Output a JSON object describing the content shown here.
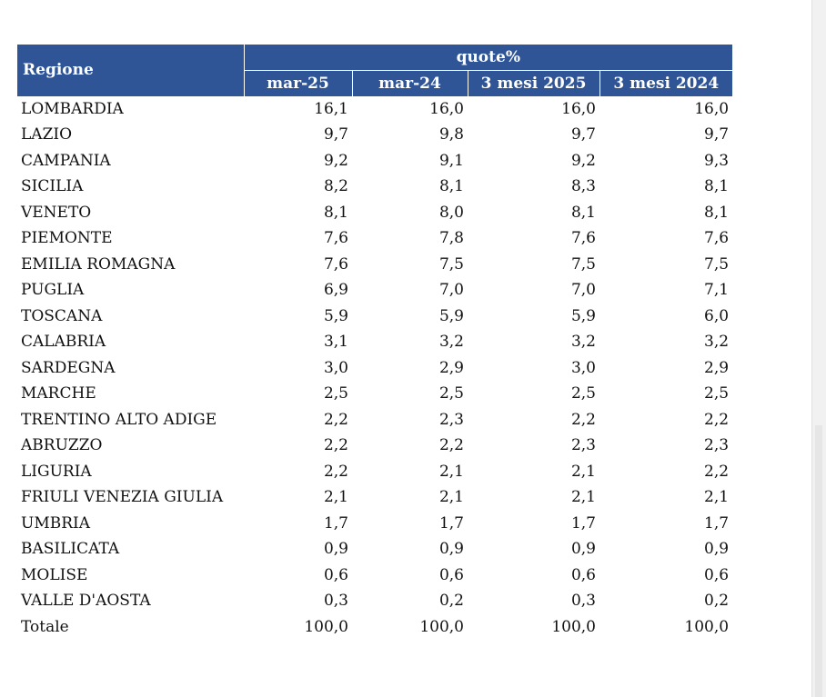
{
  "table": {
    "region_header": "Regione",
    "group_header": "quote%",
    "columns": [
      "mar-25",
      "mar-24",
      "3 mesi 2025",
      "3 mesi 2024"
    ],
    "rows": [
      {
        "region": "LOMBARDIA",
        "values": [
          "16,1",
          "16,0",
          "16,0",
          "16,0"
        ]
      },
      {
        "region": "LAZIO",
        "values": [
          "9,7",
          "9,8",
          "9,7",
          "9,7"
        ]
      },
      {
        "region": "CAMPANIA",
        "values": [
          "9,2",
          "9,1",
          "9,2",
          "9,3"
        ]
      },
      {
        "region": "SICILIA",
        "values": [
          "8,2",
          "8,1",
          "8,3",
          "8,1"
        ]
      },
      {
        "region": "VENETO",
        "values": [
          "8,1",
          "8,0",
          "8,1",
          "8,1"
        ]
      },
      {
        "region": "PIEMONTE",
        "values": [
          "7,6",
          "7,8",
          "7,6",
          "7,6"
        ]
      },
      {
        "region": "EMILIA ROMAGNA",
        "values": [
          "7,6",
          "7,5",
          "7,5",
          "7,5"
        ]
      },
      {
        "region": "PUGLIA",
        "values": [
          "6,9",
          "7,0",
          "7,0",
          "7,1"
        ]
      },
      {
        "region": "TOSCANA",
        "values": [
          "5,9",
          "5,9",
          "5,9",
          "6,0"
        ]
      },
      {
        "region": "CALABRIA",
        "values": [
          "3,1",
          "3,2",
          "3,2",
          "3,2"
        ]
      },
      {
        "region": "SARDEGNA",
        "values": [
          "3,0",
          "2,9",
          "3,0",
          "2,9"
        ]
      },
      {
        "region": "MARCHE",
        "values": [
          "2,5",
          "2,5",
          "2,5",
          "2,5"
        ]
      },
      {
        "region": "TRENTINO ALTO ADIGE",
        "values": [
          "2,2",
          "2,3",
          "2,2",
          "2,2"
        ]
      },
      {
        "region": "ABRUZZO",
        "values": [
          "2,2",
          "2,2",
          "2,3",
          "2,3"
        ]
      },
      {
        "region": "LIGURIA",
        "values": [
          "2,2",
          "2,1",
          "2,1",
          "2,2"
        ]
      },
      {
        "region": "FRIULI VENEZIA GIULIA",
        "values": [
          "2,1",
          "2,1",
          "2,1",
          "2,1"
        ]
      },
      {
        "region": "UMBRIA",
        "values": [
          "1,7",
          "1,7",
          "1,7",
          "1,7"
        ]
      },
      {
        "region": "BASILICATA",
        "values": [
          "0,9",
          "0,9",
          "0,9",
          "0,9"
        ]
      },
      {
        "region": "MOLISE",
        "values": [
          "0,6",
          "0,6",
          "0,6",
          "0,6"
        ]
      },
      {
        "region": "VALLE D'AOSTA",
        "values": [
          "0,3",
          "0,2",
          "0,3",
          "0,2"
        ]
      },
      {
        "region": "Totale",
        "values": [
          "100,0",
          "100,0",
          "100,0",
          "100,0"
        ]
      }
    ]
  },
  "colors": {
    "header_background": "#2f5597",
    "header_text": "#ffffff"
  }
}
